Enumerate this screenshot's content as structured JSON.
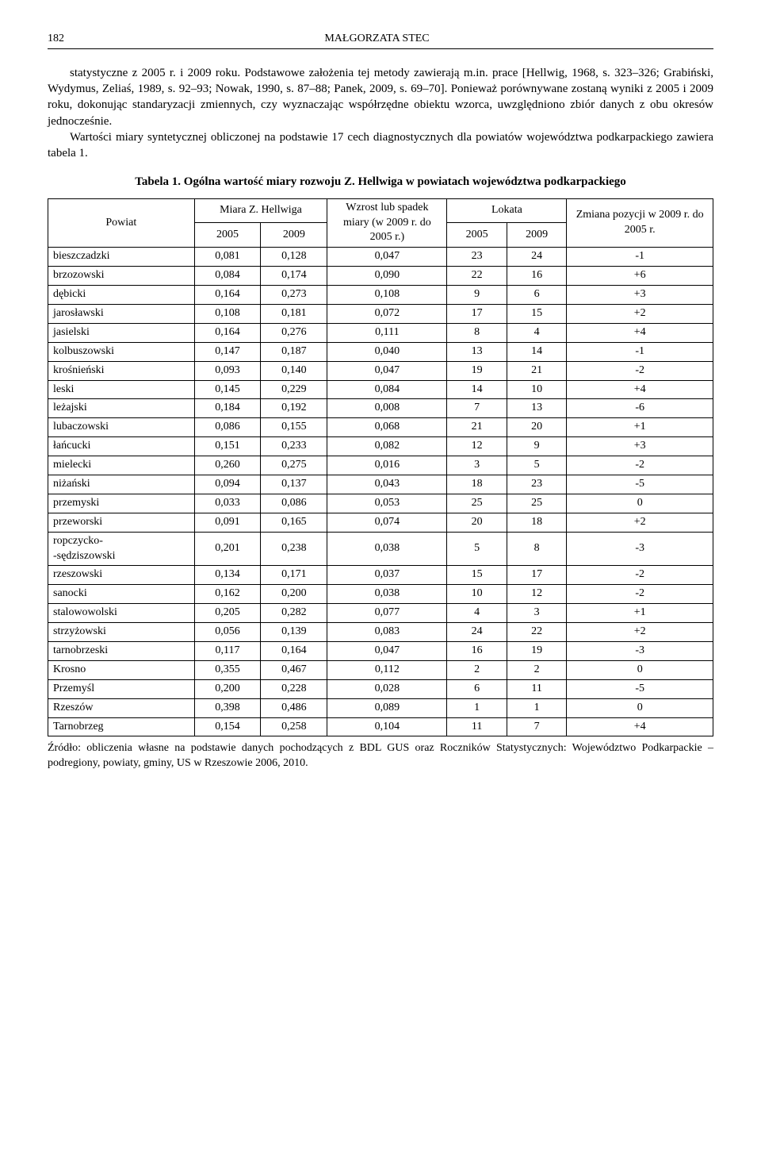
{
  "page_number": "182",
  "running_head": "MAŁGORZATA STEC",
  "paragraphs": {
    "p1": "statystyczne z 2005 r. i 2009 roku. Podstawowe założenia tej metody zawierają m.in. prace [Hellwig, 1968, s. 323–326; Grabiński, Wydymus, Zeliaś, 1989, s. 92–93; Nowak, 1990, s. 87–88; Panek, 2009, s. 69–70]. Ponieważ porównywane zostaną wyniki z 2005 i 2009 roku, dokonując standaryzacji zmiennych, czy wyznaczając współrzędne obiektu wzorca, uwzględniono zbiór danych z obu okresów jednocześnie.",
    "p2": "Wartości miary syntetycznej obliczonej na podstawie 17 cech diagnostycznych dla powiatów województwa podkarpackiego zawiera tabela 1."
  },
  "table": {
    "title": "Tabela 1. Ogólna wartość miary rozwoju Z. Hellwiga w powiatach województwa podkarpackiego",
    "columns": {
      "powiat": "Powiat",
      "miara_group": "Miara Z. Hellwiga",
      "miara_2005": "2005",
      "miara_2009": "2009",
      "wzrost": "Wzrost lub spadek miary (w 2009 r. do 2005 r.)",
      "lokata_group": "Lokata",
      "lokata_2005": "2005",
      "lokata_2009": "2009",
      "zmiana": "Zmiana pozycji w 2009 r. do 2005 r."
    },
    "rows": [
      {
        "name": "bieszczadzki",
        "m05": "0,081",
        "m09": "0,128",
        "wz": "0,047",
        "l05": "23",
        "l09": "24",
        "zm": "-1"
      },
      {
        "name": "brzozowski",
        "m05": "0,084",
        "m09": "0,174",
        "wz": "0,090",
        "l05": "22",
        "l09": "16",
        "zm": "+6"
      },
      {
        "name": "dębicki",
        "m05": "0,164",
        "m09": "0,273",
        "wz": "0,108",
        "l05": "9",
        "l09": "6",
        "zm": "+3"
      },
      {
        "name": "jarosławski",
        "m05": "0,108",
        "m09": "0,181",
        "wz": "0,072",
        "l05": "17",
        "l09": "15",
        "zm": "+2"
      },
      {
        "name": "jasielski",
        "m05": "0,164",
        "m09": "0,276",
        "wz": "0,111",
        "l05": "8",
        "l09": "4",
        "zm": "+4"
      },
      {
        "name": "kolbuszowski",
        "m05": "0,147",
        "m09": "0,187",
        "wz": "0,040",
        "l05": "13",
        "l09": "14",
        "zm": "-1"
      },
      {
        "name": "krośnieński",
        "m05": "0,093",
        "m09": "0,140",
        "wz": "0,047",
        "l05": "19",
        "l09": "21",
        "zm": "-2"
      },
      {
        "name": "leski",
        "m05": "0,145",
        "m09": "0,229",
        "wz": "0,084",
        "l05": "14",
        "l09": "10",
        "zm": "+4"
      },
      {
        "name": "leżajski",
        "m05": "0,184",
        "m09": "0,192",
        "wz": "0,008",
        "l05": "7",
        "l09": "13",
        "zm": "-6"
      },
      {
        "name": "lubaczowski",
        "m05": "0,086",
        "m09": "0,155",
        "wz": "0,068",
        "l05": "21",
        "l09": "20",
        "zm": "+1"
      },
      {
        "name": "łańcucki",
        "m05": "0,151",
        "m09": "0,233",
        "wz": "0,082",
        "l05": "12",
        "l09": "9",
        "zm": "+3"
      },
      {
        "name": "mielecki",
        "m05": "0,260",
        "m09": "0,275",
        "wz": "0,016",
        "l05": "3",
        "l09": "5",
        "zm": "-2"
      },
      {
        "name": "niżański",
        "m05": "0,094",
        "m09": "0,137",
        "wz": "0,043",
        "l05": "18",
        "l09": "23",
        "zm": "-5"
      },
      {
        "name": "przemyski",
        "m05": "0,033",
        "m09": "0,086",
        "wz": "0,053",
        "l05": "25",
        "l09": "25",
        "zm": "0"
      },
      {
        "name": "przeworski",
        "m05": "0,091",
        "m09": "0,165",
        "wz": "0,074",
        "l05": "20",
        "l09": "18",
        "zm": "+2"
      },
      {
        "name": "ropczycko-\n-sędziszowski",
        "m05": "0,201",
        "m09": "0,238",
        "wz": "0,038",
        "l05": "5",
        "l09": "8",
        "zm": "-3"
      },
      {
        "name": "rzeszowski",
        "m05": "0,134",
        "m09": "0,171",
        "wz": "0,037",
        "l05": "15",
        "l09": "17",
        "zm": "-2"
      },
      {
        "name": "sanocki",
        "m05": "0,162",
        "m09": "0,200",
        "wz": "0,038",
        "l05": "10",
        "l09": "12",
        "zm": "-2"
      },
      {
        "name": "stalowowolski",
        "m05": "0,205",
        "m09": "0,282",
        "wz": "0,077",
        "l05": "4",
        "l09": "3",
        "zm": "+1"
      },
      {
        "name": "strzyżowski",
        "m05": "0,056",
        "m09": "0,139",
        "wz": "0,083",
        "l05": "24",
        "l09": "22",
        "zm": "+2"
      },
      {
        "name": "tarnobrzeski",
        "m05": "0,117",
        "m09": "0,164",
        "wz": "0,047",
        "l05": "16",
        "l09": "19",
        "zm": "-3"
      },
      {
        "name": "Krosno",
        "m05": "0,355",
        "m09": "0,467",
        "wz": "0,112",
        "l05": "2",
        "l09": "2",
        "zm": "0"
      },
      {
        "name": "Przemyśl",
        "m05": "0,200",
        "m09": "0,228",
        "wz": "0,028",
        "l05": "6",
        "l09": "11",
        "zm": "-5"
      },
      {
        "name": "Rzeszów",
        "m05": "0,398",
        "m09": "0,486",
        "wz": "0,089",
        "l05": "1",
        "l09": "1",
        "zm": "0"
      },
      {
        "name": "Tarnobrzeg",
        "m05": "0,154",
        "m09": "0,258",
        "wz": "0,104",
        "l05": "11",
        "l09": "7",
        "zm": "+4"
      }
    ],
    "col_widths": [
      "22%",
      "10%",
      "10%",
      "18%",
      "9%",
      "9%",
      "22%"
    ],
    "border_color": "#000000",
    "background_color": "#ffffff",
    "font_size_pt": 10
  },
  "source": "Źródło: obliczenia własne na podstawie danych pochodzących z BDL GUS oraz Roczników Statystycznych: Województwo Podkarpackie – podregiony, powiaty, gminy, US w Rzeszowie 2006, 2010."
}
